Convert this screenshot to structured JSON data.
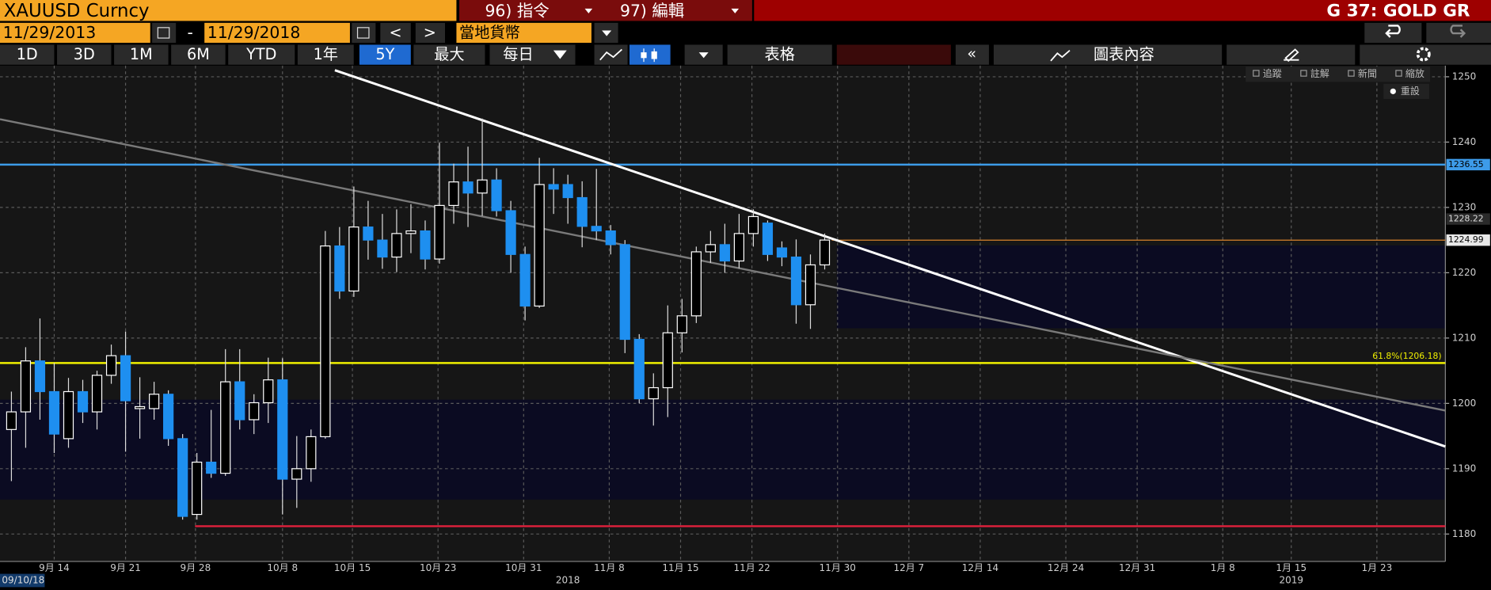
{
  "ui": {
    "ticker": "XAUUSD Curncy",
    "menu": [
      "96) 指令",
      "97) 編輯"
    ],
    "screen_title": "G 37: GOLD GR",
    "start_date": "11/29/2013",
    "dash": "-",
    "end_date": "11/29/2018",
    "prev": "<",
    "next": ">",
    "currency": "當地貨幣",
    "periods": [
      "1D",
      "3D",
      "1M",
      "6M",
      "YTD",
      "1年",
      "5Y",
      "最大"
    ],
    "frequency": "每日",
    "table": "表格",
    "collapse": "«",
    "chart_content": "圖表內容",
    "chart_tools": [
      "追蹤",
      "註解",
      "新聞",
      "縮放"
    ],
    "reset": "重設",
    "range_start": "09/10/18"
  },
  "chart_data": {
    "type": "candlestick",
    "up_color": "#ffffff",
    "down_color": "#1e8ff0",
    "open": [
      1196.0,
      1198.7,
      1206.5,
      1201.8,
      1194.6,
      1201.8,
      1198.7,
      1204.3,
      1207.3,
      1199.2,
      1199.2,
      1201.4,
      1194.6,
      1183.0,
      1191.0,
      1189.3,
      1203.3,
      1197.5,
      1200.1,
      1203.6,
      1188.4,
      1190.0,
      1194.9,
      1224.1,
      1217.2,
      1227.0,
      1225.0,
      1222.4,
      1226.0,
      1226.4,
      1222.1,
      1230.3,
      1233.9,
      1232.2,
      1234.2,
      1229.5,
      1222.8,
      1214.9,
      1233.5,
      1233.5,
      1231.5,
      1227.1,
      1226.4,
      1224.3,
      1209.8,
      1200.7,
      1202.4,
      1210.8,
      1213.4,
      1223.2,
      1224.3,
      1221.8,
      1226.0,
      1227.6,
      1223.8,
      1222.4,
      1215.1,
      1221.2
    ],
    "high": [
      1201.8,
      1208.6,
      1213.0,
      1206.2,
      1203.9,
      1203.6,
      1205.0,
      1209.0,
      1211.0,
      1204.0,
      1203.3,
      1202.0,
      1195.3,
      1192.4,
      1199.0,
      1208.3,
      1208.3,
      1201.4,
      1207.0,
      1206.9,
      1195.0,
      1196.0,
      1226.4,
      1227.0,
      1233.2,
      1231.0,
      1229.0,
      1229.7,
      1230.5,
      1228.0,
      1239.9,
      1236.7,
      1239.3,
      1243.6,
      1236.0,
      1231.0,
      1224.0,
      1237.6,
      1236.0,
      1235.0,
      1234.0,
      1235.9,
      1227.3,
      1225.0,
      1210.6,
      1204.6,
      1215.0,
      1216.0,
      1224.0,
      1226.4,
      1227.5,
      1229.0,
      1229.7,
      1228.0,
      1224.8,
      1225.1,
      1222.8,
      1226.0
    ],
    "low": [
      1188.1,
      1193.2,
      1197.5,
      1192.4,
      1193.2,
      1197.0,
      1196.0,
      1203.0,
      1192.6,
      1194.6,
      1197.5,
      1193.5,
      1182.2,
      1182.2,
      1188.6,
      1188.9,
      1196.0,
      1195.3,
      1197.0,
      1183.0,
      1184.0,
      1188.0,
      1194.6,
      1216.0,
      1216.3,
      1222.0,
      1220.6,
      1220.1,
      1223.0,
      1220.5,
      1221.4,
      1227.5,
      1227.0,
      1228.7,
      1228.6,
      1220.0,
      1212.7,
      1214.6,
      1229.0,
      1227.5,
      1223.9,
      1225.0,
      1222.8,
      1207.7,
      1200.0,
      1196.6,
      1197.9,
      1207.8,
      1212.3,
      1221.5,
      1220.0,
      1220.7,
      1224.0,
      1221.8,
      1221.0,
      1212.2,
      1211.4,
      1220.5
    ],
    "close": [
      1198.7,
      1206.5,
      1201.8,
      1195.3,
      1201.8,
      1198.7,
      1204.3,
      1207.3,
      1200.4,
      1199.5,
      1201.4,
      1194.6,
      1182.7,
      1191.0,
      1189.3,
      1203.3,
      1197.5,
      1200.1,
      1203.6,
      1188.4,
      1190.0,
      1194.9,
      1224.1,
      1217.2,
      1227.0,
      1225.0,
      1222.4,
      1226.0,
      1226.4,
      1222.1,
      1230.3,
      1233.9,
      1232.2,
      1234.2,
      1229.5,
      1222.8,
      1214.9,
      1233.5,
      1232.8,
      1231.5,
      1227.1,
      1226.4,
      1224.3,
      1209.8,
      1200.7,
      1202.4,
      1210.8,
      1213.4,
      1223.2,
      1224.3,
      1221.8,
      1226.0,
      1228.6,
      1222.8,
      1222.4,
      1215.1,
      1221.2,
      1225.0
    ],
    "xlim": [
      -0.8,
      100.5
    ],
    "ylim": [
      1175.8,
      1251.7
    ],
    "yticks": [
      1180,
      1190,
      1200,
      1210,
      1220,
      1230,
      1240,
      1250
    ],
    "xticks": [
      {
        "value": 3,
        "label": "9月 14"
      },
      {
        "value": 8,
        "label": "9月 21"
      },
      {
        "value": 12.9,
        "label": "9月 28"
      },
      {
        "value": 19,
        "label": "10月 8"
      },
      {
        "value": 23.9,
        "label": "10月 15"
      },
      {
        "value": 29.9,
        "label": "10月 23"
      },
      {
        "value": 35.9,
        "label": "10月 31"
      },
      {
        "value": 41.9,
        "label": "11月 8"
      },
      {
        "value": 46.9,
        "label": "11月 15"
      },
      {
        "value": 51.9,
        "label": "11月 22"
      },
      {
        "value": 57.9,
        "label": "11月 30"
      },
      {
        "value": 62.9,
        "label": "12月 7"
      },
      {
        "value": 67.9,
        "label": "12月 14"
      },
      {
        "value": 73.9,
        "label": "12月 24"
      },
      {
        "value": 78.9,
        "label": "12月 31"
      },
      {
        "value": 84.9,
        "label": "1月 8"
      },
      {
        "value": 89.7,
        "label": "1月 15"
      },
      {
        "value": 95.7,
        "label": "1月 23"
      }
    ],
    "year_labels": [
      {
        "value": 39,
        "label": "2018"
      },
      {
        "value": 89.7,
        "label": "2019"
      }
    ],
    "grid": true,
    "levels": [
      {
        "value": 1236.55,
        "color": "#3d9be9"
      },
      {
        "value": 1206.18,
        "label": "61.8%(1206.18)",
        "color": "#f0f000"
      },
      {
        "value": 1181.2,
        "color": "#e0203c",
        "x_from": 12.87
      },
      {
        "value": 1224.99,
        "color": "#d9822b",
        "x_from": 57.5
      }
    ],
    "marker_value": 1228.22,
    "trendlines": [
      {
        "x": [
          22.67,
          100.5
        ],
        "y": [
          1251.0,
          1193.4
        ],
        "color": "#ffffff"
      },
      {
        "x": [
          -0.8,
          100.5
        ],
        "y": [
          1243.5,
          1198.9
        ],
        "color": "#7a7a7a"
      }
    ]
  }
}
